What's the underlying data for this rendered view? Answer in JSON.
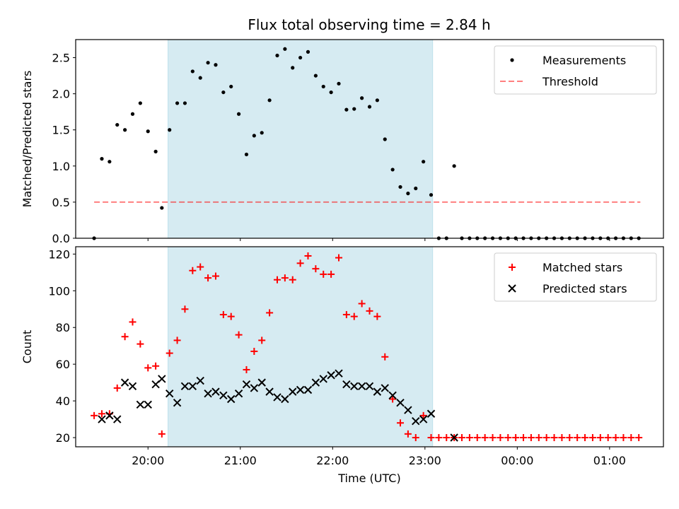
{
  "title": "Flux total observing time = 2.84 h",
  "colors": {
    "measurement": "#000000",
    "threshold": "#ff0000",
    "matched": "#ff0000",
    "predicted": "#000000",
    "highlight": "#add8e6"
  },
  "chart_data": [
    {
      "type": "scatter",
      "ylabel": "Matched/Predicted stars",
      "ylim": [
        0,
        2.75
      ],
      "yticks": [
        0.0,
        0.5,
        1.0,
        1.5,
        2.0,
        2.5
      ],
      "ytick_labels": [
        "0.0",
        "0.5",
        "1.0",
        "1.5",
        "2.0",
        "2.5"
      ],
      "xlim": [
        "19:13",
        "01:35"
      ],
      "highlight_span": [
        "20:13",
        "23:05"
      ],
      "legend_position": "upper right",
      "legend": [
        {
          "key": "measurements",
          "label": "Measurements"
        },
        {
          "key": "threshold",
          "label": "Threshold"
        }
      ],
      "threshold": {
        "value": 0.5,
        "x": [
          "19:25",
          "01:20"
        ]
      },
      "series": [
        {
          "name": "Measurements",
          "points": [
            [
              "19:25",
              0.0
            ],
            [
              "19:30",
              1.1
            ],
            [
              "19:35",
              1.06
            ],
            [
              "19:40",
              1.57
            ],
            [
              "19:45",
              1.5
            ],
            [
              "19:50",
              1.72
            ],
            [
              "19:55",
              1.87
            ],
            [
              "20:00",
              1.48
            ],
            [
              "20:05",
              1.2
            ],
            [
              "20:09",
              0.42
            ],
            [
              "20:14",
              1.5
            ],
            [
              "20:19",
              1.87
            ],
            [
              "20:24",
              1.87
            ],
            [
              "20:29",
              2.31
            ],
            [
              "20:34",
              2.22
            ],
            [
              "20:39",
              2.43
            ],
            [
              "20:44",
              2.4
            ],
            [
              "20:49",
              2.02
            ],
            [
              "20:54",
              2.1
            ],
            [
              "20:59",
              1.72
            ],
            [
              "21:04",
              1.16
            ],
            [
              "21:09",
              1.42
            ],
            [
              "21:14",
              1.46
            ],
            [
              "21:19",
              1.91
            ],
            [
              "21:24",
              2.53
            ],
            [
              "21:29",
              2.62
            ],
            [
              "21:34",
              2.36
            ],
            [
              "21:39",
              2.5
            ],
            [
              "21:44",
              2.58
            ],
            [
              "21:49",
              2.25
            ],
            [
              "21:54",
              2.1
            ],
            [
              "21:59",
              2.02
            ],
            [
              "22:04",
              2.14
            ],
            [
              "22:09",
              1.78
            ],
            [
              "22:14",
              1.79
            ],
            [
              "22:19",
              1.94
            ],
            [
              "22:24",
              1.82
            ],
            [
              "22:29",
              1.91
            ],
            [
              "22:34",
              1.37
            ],
            [
              "22:39",
              0.95
            ],
            [
              "22:44",
              0.71
            ],
            [
              "22:49",
              0.62
            ],
            [
              "22:54",
              0.69
            ],
            [
              "22:59",
              1.06
            ],
            [
              "23:04",
              0.6
            ],
            [
              "23:09",
              0.0
            ],
            [
              "23:14",
              0.0
            ],
            [
              "23:19",
              1.0
            ],
            [
              "23:24",
              0.0
            ],
            [
              "23:29",
              0.0
            ],
            [
              "23:34",
              0.0
            ],
            [
              "23:39",
              0.0
            ],
            [
              "23:44",
              0.0
            ],
            [
              "23:49",
              0.0
            ],
            [
              "23:54",
              0.0
            ],
            [
              "23:59",
              0.0
            ],
            [
              "00:04",
              0.0
            ],
            [
              "00:09",
              0.0
            ],
            [
              "00:14",
              0.0
            ],
            [
              "00:19",
              0.0
            ],
            [
              "00:24",
              0.0
            ],
            [
              "00:29",
              0.0
            ],
            [
              "00:34",
              0.0
            ],
            [
              "00:39",
              0.0
            ],
            [
              "00:44",
              0.0
            ],
            [
              "00:49",
              0.0
            ],
            [
              "00:54",
              0.0
            ],
            [
              "00:59",
              0.0
            ],
            [
              "01:04",
              0.0
            ],
            [
              "01:09",
              0.0
            ],
            [
              "01:14",
              0.0
            ],
            [
              "01:19",
              0.0
            ]
          ]
        }
      ]
    },
    {
      "type": "scatter",
      "xlabel": "Time (UTC)",
      "ylabel": "Count",
      "ylim": [
        15,
        124
      ],
      "yticks": [
        20,
        40,
        60,
        80,
        100,
        120
      ],
      "ytick_labels": [
        "20",
        "40",
        "60",
        "80",
        "100",
        "120"
      ],
      "xlim": [
        "19:13",
        "01:35"
      ],
      "xticks": [
        "20:00",
        "21:00",
        "22:00",
        "23:00",
        "00:00",
        "01:00"
      ],
      "xtick_labels": [
        "20:00",
        "21:00",
        "22:00",
        "23:00",
        "00:00",
        "01:00"
      ],
      "highlight_span": [
        "20:13",
        "23:05"
      ],
      "legend_position": "upper right",
      "legend": [
        {
          "key": "matched",
          "label": "Matched stars"
        },
        {
          "key": "predicted",
          "label": "Predicted stars"
        }
      ],
      "series": [
        {
          "name": "Matched stars",
          "marker": "+",
          "points": [
            [
              "19:25",
              32
            ],
            [
              "19:30",
              33
            ],
            [
              "19:35",
              33
            ],
            [
              "19:40",
              47
            ],
            [
              "19:45",
              75
            ],
            [
              "19:50",
              83
            ],
            [
              "19:55",
              71
            ],
            [
              "20:00",
              58
            ],
            [
              "20:05",
              59
            ],
            [
              "20:09",
              22
            ],
            [
              "20:14",
              66
            ],
            [
              "20:19",
              73
            ],
            [
              "20:24",
              90
            ],
            [
              "20:29",
              111
            ],
            [
              "20:34",
              113
            ],
            [
              "20:39",
              107
            ],
            [
              "20:44",
              108
            ],
            [
              "20:49",
              87
            ],
            [
              "20:54",
              86
            ],
            [
              "20:59",
              76
            ],
            [
              "21:04",
              57
            ],
            [
              "21:09",
              67
            ],
            [
              "21:14",
              73
            ],
            [
              "21:19",
              88
            ],
            [
              "21:24",
              106
            ],
            [
              "21:29",
              107
            ],
            [
              "21:34",
              106
            ],
            [
              "21:39",
              115
            ],
            [
              "21:44",
              119
            ],
            [
              "21:49",
              112
            ],
            [
              "21:54",
              109
            ],
            [
              "21:59",
              109
            ],
            [
              "22:04",
              118
            ],
            [
              "22:09",
              87
            ],
            [
              "22:14",
              86
            ],
            [
              "22:19",
              93
            ],
            [
              "22:24",
              89
            ],
            [
              "22:29",
              86
            ],
            [
              "22:34",
              64
            ],
            [
              "22:39",
              41
            ],
            [
              "22:44",
              28
            ],
            [
              "22:49",
              22
            ],
            [
              "22:54",
              20
            ],
            [
              "22:59",
              32
            ],
            [
              "23:04",
              20
            ],
            [
              "23:09",
              20
            ],
            [
              "23:14",
              20
            ],
            [
              "23:19",
              20
            ],
            [
              "23:24",
              20
            ],
            [
              "23:29",
              20
            ],
            [
              "23:34",
              20
            ],
            [
              "23:39",
              20
            ],
            [
              "23:44",
              20
            ],
            [
              "23:49",
              20
            ],
            [
              "23:54",
              20
            ],
            [
              "23:59",
              20
            ],
            [
              "00:04",
              20
            ],
            [
              "00:09",
              20
            ],
            [
              "00:14",
              20
            ],
            [
              "00:19",
              20
            ],
            [
              "00:24",
              20
            ],
            [
              "00:29",
              20
            ],
            [
              "00:34",
              20
            ],
            [
              "00:39",
              20
            ],
            [
              "00:44",
              20
            ],
            [
              "00:49",
              20
            ],
            [
              "00:54",
              20
            ],
            [
              "00:59",
              20
            ],
            [
              "01:04",
              20
            ],
            [
              "01:09",
              20
            ],
            [
              "01:14",
              20
            ],
            [
              "01:19",
              20
            ]
          ]
        },
        {
          "name": "Predicted stars",
          "marker": "x",
          "points": [
            [
              "19:30",
              30
            ],
            [
              "19:35",
              32
            ],
            [
              "19:40",
              30
            ],
            [
              "19:45",
              50
            ],
            [
              "19:50",
              48
            ],
            [
              "19:55",
              38
            ],
            [
              "20:00",
              38
            ],
            [
              "20:05",
              49
            ],
            [
              "20:09",
              52
            ],
            [
              "20:14",
              44
            ],
            [
              "20:19",
              39
            ],
            [
              "20:24",
              48
            ],
            [
              "20:29",
              48
            ],
            [
              "20:34",
              51
            ],
            [
              "20:39",
              44
            ],
            [
              "20:44",
              45
            ],
            [
              "20:49",
              43
            ],
            [
              "20:54",
              41
            ],
            [
              "20:59",
              44
            ],
            [
              "21:04",
              49
            ],
            [
              "21:09",
              47
            ],
            [
              "21:14",
              50
            ],
            [
              "21:19",
              45
            ],
            [
              "21:24",
              42
            ],
            [
              "21:29",
              41
            ],
            [
              "21:34",
              45
            ],
            [
              "21:39",
              46
            ],
            [
              "21:44",
              46
            ],
            [
              "21:49",
              50
            ],
            [
              "21:54",
              52
            ],
            [
              "21:59",
              54
            ],
            [
              "22:04",
              55
            ],
            [
              "22:09",
              49
            ],
            [
              "22:14",
              48
            ],
            [
              "22:19",
              48
            ],
            [
              "22:24",
              48
            ],
            [
              "22:29",
              45
            ],
            [
              "22:34",
              47
            ],
            [
              "22:39",
              43
            ],
            [
              "22:44",
              39
            ],
            [
              "22:49",
              35
            ],
            [
              "22:54",
              29
            ],
            [
              "22:59",
              30
            ],
            [
              "23:04",
              33
            ],
            [
              "23:19",
              20
            ]
          ]
        }
      ]
    }
  ]
}
